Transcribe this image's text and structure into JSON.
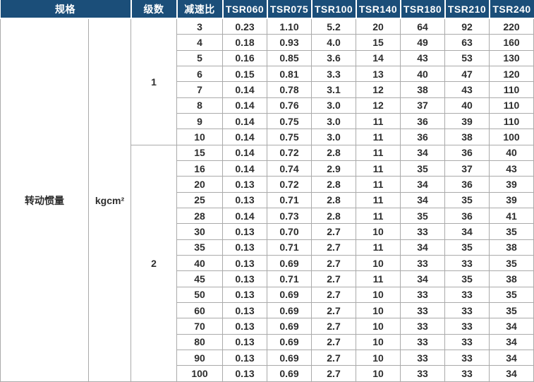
{
  "table": {
    "header": {
      "spec": "规格",
      "stages": "级数",
      "ratio": "减速比",
      "models": [
        "TSR060",
        "TSR075",
        "TSR100",
        "TSR140",
        "TSR180",
        "TSR210",
        "TSR240"
      ]
    },
    "spec_label": "转动惯量",
    "unit": "kgcm²",
    "groups": [
      {
        "stage": "1",
        "rows": [
          {
            "ratio": "3",
            "highlight": false,
            "values": [
              "0.23",
              "1.10",
              "5.2",
              "20",
              "64",
              "92",
              "220"
            ]
          },
          {
            "ratio": "4",
            "highlight": false,
            "values": [
              "0.18",
              "0.93",
              "4.0",
              "15",
              "49",
              "63",
              "160"
            ]
          },
          {
            "ratio": "5",
            "highlight": false,
            "values": [
              "0.16",
              "0.85",
              "3.6",
              "14",
              "43",
              "53",
              "130"
            ]
          },
          {
            "ratio": "6",
            "highlight": true,
            "values": [
              "0.15",
              "0.81",
              "3.3",
              "13",
              "40",
              "47",
              "120"
            ]
          },
          {
            "ratio": "7",
            "highlight": false,
            "values": [
              "0.14",
              "0.78",
              "3.1",
              "12",
              "38",
              "43",
              "110"
            ]
          },
          {
            "ratio": "8",
            "highlight": false,
            "values": [
              "0.14",
              "0.76",
              "3.0",
              "12",
              "37",
              "40",
              "110"
            ]
          },
          {
            "ratio": "9",
            "highlight": true,
            "values": [
              "0.14",
              "0.75",
              "3.0",
              "11",
              "36",
              "39",
              "110"
            ]
          },
          {
            "ratio": "10",
            "highlight": false,
            "values": [
              "0.14",
              "0.75",
              "3.0",
              "11",
              "36",
              "38",
              "100"
            ]
          }
        ]
      },
      {
        "stage": "2",
        "rows": [
          {
            "ratio": "15",
            "highlight": false,
            "values": [
              "0.14",
              "0.72",
              "2.8",
              "11",
              "34",
              "36",
              "40"
            ]
          },
          {
            "ratio": "16",
            "highlight": true,
            "values": [
              "0.14",
              "0.74",
              "2.9",
              "11",
              "35",
              "37",
              "43"
            ]
          },
          {
            "ratio": "20",
            "highlight": false,
            "values": [
              "0.13",
              "0.72",
              "2.8",
              "11",
              "34",
              "36",
              "39"
            ]
          },
          {
            "ratio": "25",
            "highlight": false,
            "values": [
              "0.13",
              "0.71",
              "2.8",
              "11",
              "34",
              "35",
              "39"
            ]
          },
          {
            "ratio": "28",
            "highlight": true,
            "values": [
              "0.14",
              "0.73",
              "2.8",
              "11",
              "35",
              "36",
              "41"
            ]
          },
          {
            "ratio": "30",
            "highlight": false,
            "values": [
              "0.13",
              "0.70",
              "2.7",
              "10",
              "33",
              "34",
              "35"
            ]
          },
          {
            "ratio": "35",
            "highlight": false,
            "values": [
              "0.13",
              "0.71",
              "2.7",
              "11",
              "34",
              "35",
              "38"
            ]
          },
          {
            "ratio": "40",
            "highlight": false,
            "values": [
              "0.13",
              "0.69",
              "2.7",
              "10",
              "33",
              "33",
              "35"
            ]
          },
          {
            "ratio": "45",
            "highlight": true,
            "values": [
              "0.13",
              "0.71",
              "2.7",
              "11",
              "34",
              "35",
              "38"
            ]
          },
          {
            "ratio": "50",
            "highlight": false,
            "values": [
              "0.13",
              "0.69",
              "2.7",
              "10",
              "33",
              "33",
              "35"
            ]
          },
          {
            "ratio": "60",
            "highlight": true,
            "values": [
              "0.13",
              "0.69",
              "2.7",
              "10",
              "33",
              "33",
              "35"
            ]
          },
          {
            "ratio": "70",
            "highlight": false,
            "values": [
              "0.13",
              "0.69",
              "2.7",
              "10",
              "33",
              "33",
              "34"
            ]
          },
          {
            "ratio": "80",
            "highlight": false,
            "values": [
              "0.13",
              "0.69",
              "2.7",
              "10",
              "33",
              "33",
              "34"
            ]
          },
          {
            "ratio": "90",
            "highlight": true,
            "values": [
              "0.13",
              "0.69",
              "2.7",
              "10",
              "33",
              "33",
              "34"
            ]
          },
          {
            "ratio": "100",
            "highlight": false,
            "values": [
              "0.13",
              "0.69",
              "2.7",
              "10",
              "33",
              "33",
              "34"
            ]
          }
        ]
      }
    ],
    "colors": {
      "header_bg": "#1b4e79",
      "header_text": "#ffffff",
      "stripe": "#ececec",
      "ratio_highlight": "#b7cde6",
      "border": "#aaaaaa",
      "body_text": "#2d2d2d"
    }
  }
}
